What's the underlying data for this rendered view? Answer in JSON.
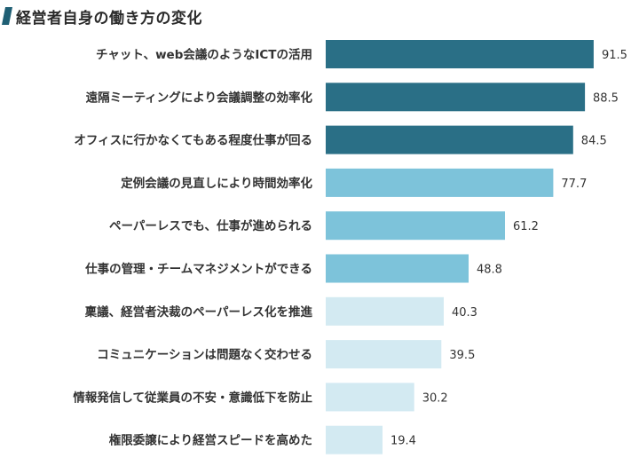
{
  "title": "経営者自身の働き方の変化",
  "colors": {
    "high": "#2a6f86",
    "mid": "#7dc3da",
    "low": "#d3eaf2",
    "title_mark": "#1f5f74",
    "text": "#333333"
  },
  "chart_data": {
    "type": "bar",
    "orientation": "horizontal",
    "title": "経営者自身の働き方の変化",
    "xlabel": "",
    "ylabel": "",
    "xlim": [
      0,
      100
    ],
    "grid": false,
    "categories": [
      "チャット、web会議のようなICTの活用",
      "遠隔ミーティングにより会議調整の効率化",
      "オフィスに行かなくてもある程度仕事が回る",
      "定例会議の見直しにより時間効率化",
      "ペーパーレスでも、仕事が進められる",
      "仕事の管理・チームマネジメントができる",
      "稟議、経営者決裁のペーパーレス化を推進",
      "コミュニケーションは問題なく交わせる",
      "情報発信して従業員の不安・意識低下を防止",
      "権限委譲により経営スピードを高めた"
    ],
    "values": [
      91.5,
      88.5,
      84.5,
      77.7,
      61.2,
      48.8,
      40.3,
      39.5,
      30.2,
      19.4
    ],
    "value_labels": [
      "91.5",
      "88.5",
      "84.5",
      "77.7",
      "61.2",
      "48.8",
      "40.3",
      "39.5",
      "30.2",
      "19.4"
    ],
    "bar_color_group": [
      "high",
      "high",
      "high",
      "mid",
      "mid",
      "mid",
      "low",
      "low",
      "low",
      "low"
    ]
  }
}
